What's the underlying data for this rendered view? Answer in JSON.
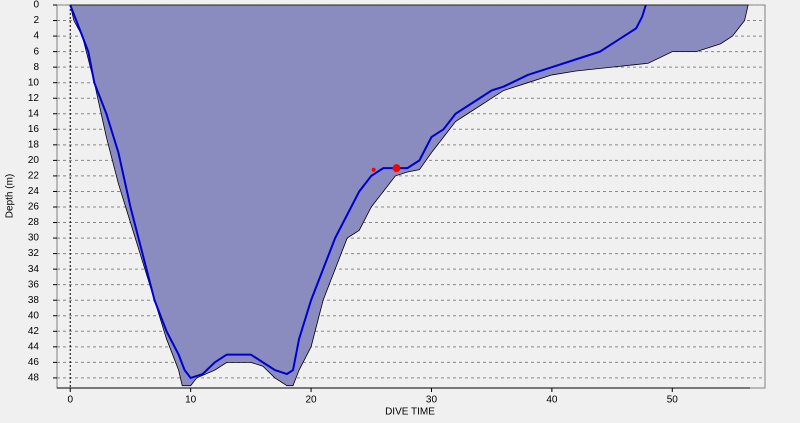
{
  "chart_data": {
    "type": "area",
    "x_label": "DIVE TIME",
    "y_label": "Depth (m)",
    "xlim": [
      -1.1,
      57.7
    ],
    "ylim": [
      0,
      49.3
    ],
    "y_inverted": true,
    "xticks": [
      0,
      10,
      20,
      30,
      40,
      50
    ],
    "yticks": [
      0,
      2,
      4,
      6,
      8,
      10,
      12,
      14,
      16,
      18,
      20,
      22,
      24,
      26,
      28,
      30,
      32,
      34,
      36,
      38,
      40,
      42,
      44,
      46,
      48
    ],
    "grid": true,
    "series": [
      {
        "type": "area",
        "color": "#8a8cc0",
        "x": [
          0,
          0.3,
          1,
          2,
          3,
          4,
          5,
          6,
          7,
          8,
          9,
          9.3,
          10,
          10.5,
          12,
          13,
          15,
          16,
          17,
          18,
          18.5,
          19,
          20,
          21,
          22,
          23,
          24,
          25,
          26,
          27,
          28,
          29,
          30,
          31,
          32,
          33,
          34,
          35,
          36,
          38,
          40,
          42,
          45,
          48,
          50,
          52,
          53,
          54,
          55,
          56,
          56.3
        ],
        "values": [
          0,
          2,
          4,
          10,
          17,
          23,
          28,
          33,
          38,
          43,
          47,
          49,
          49,
          48,
          47,
          46,
          46,
          46.5,
          48,
          49,
          49,
          47,
          44,
          38,
          34,
          30,
          29,
          26,
          24,
          22,
          21.5,
          21.2,
          19,
          17,
          15,
          14,
          13,
          12,
          11,
          10,
          9,
          8.5,
          8,
          7.5,
          6,
          6,
          5.5,
          5,
          4,
          2,
          0
        ]
      },
      {
        "type": "line",
        "color": "#0000cc",
        "x": [
          0,
          0.5,
          1.5,
          2,
          3,
          4,
          5,
          6,
          7,
          8,
          9,
          9.5,
          10,
          11,
          12,
          13,
          15,
          16,
          17,
          18,
          18.5,
          19,
          20,
          21,
          22,
          23,
          24,
          25,
          26,
          27,
          28,
          29,
          30,
          31,
          32,
          33,
          34,
          35,
          36,
          38,
          40,
          42,
          44,
          45,
          46,
          47,
          47.5,
          47.8
        ],
        "values": [
          0,
          2,
          6,
          10,
          14,
          19,
          26,
          32,
          38,
          42,
          45,
          47,
          48,
          47.5,
          46,
          45,
          45,
          46,
          47,
          47.5,
          47,
          43,
          38,
          34,
          30,
          27,
          24,
          22,
          21,
          21,
          21,
          20,
          17,
          16,
          14,
          13,
          12,
          11,
          10.5,
          9,
          8,
          7,
          6,
          5,
          4,
          3,
          1.5,
          0
        ]
      },
      {
        "type": "scatter",
        "color": "#ff0000",
        "x": [
          25.2,
          27.1
        ],
        "values": [
          21.2,
          21
        ]
      }
    ]
  }
}
